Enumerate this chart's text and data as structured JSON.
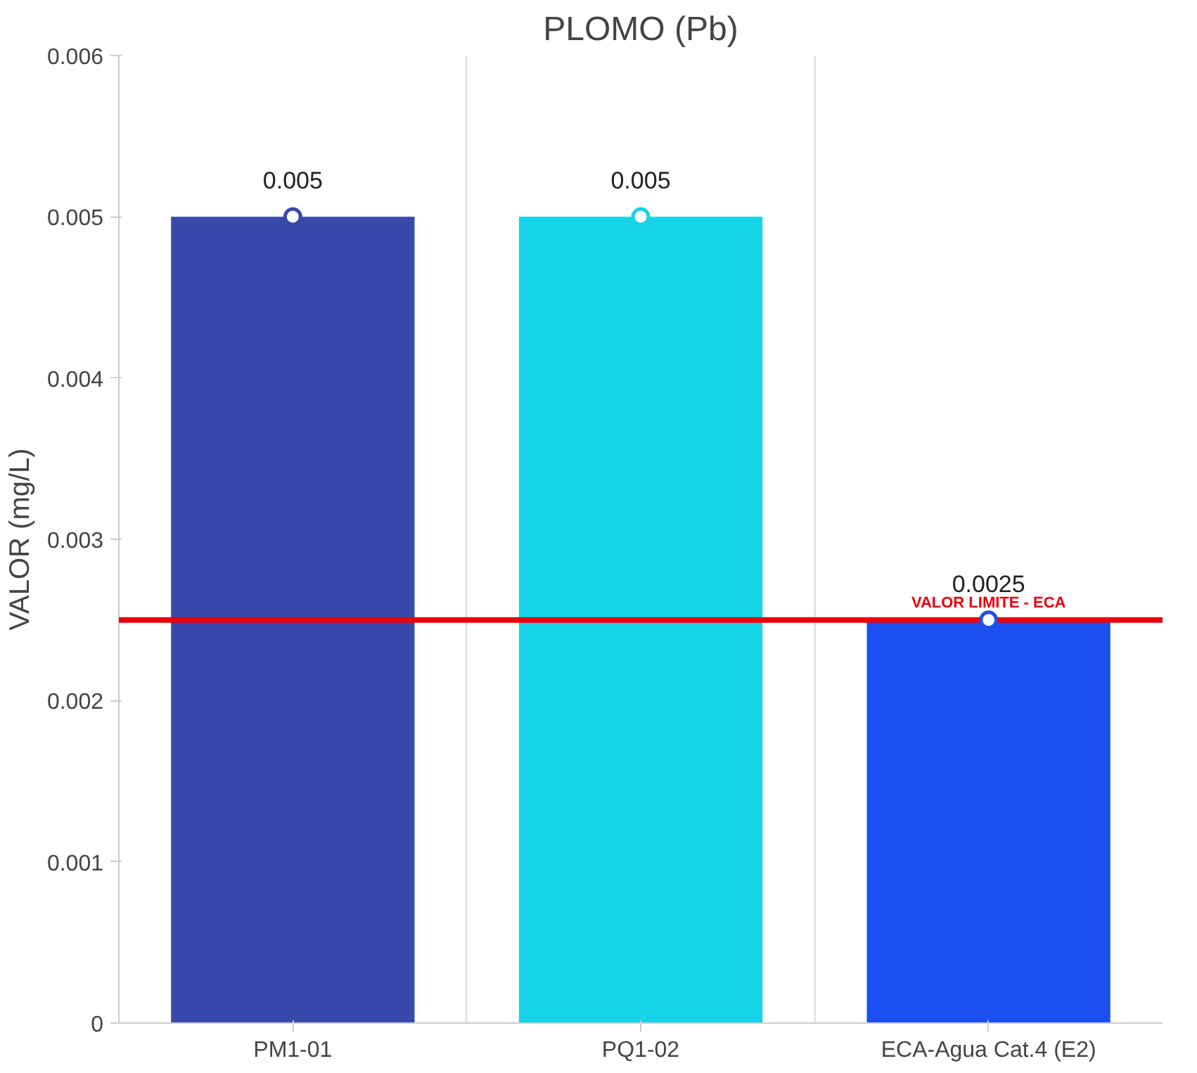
{
  "chart_data": {
    "type": "bar",
    "title": "PLOMO (Pb)",
    "ylabel": "VALOR (mg/L)",
    "categories": [
      "PM1-01",
      "PQ1-02",
      "ECA-Agua Cat.4 (E2)"
    ],
    "values": [
      0.005,
      0.005,
      0.0025
    ],
    "colors": [
      "#3949ab",
      "#16d3e8",
      "#1c4ff0"
    ],
    "series": [
      {
        "type": "scatter",
        "x": [
          "PM1-01",
          "PQ1-02",
          "ECA-Agua Cat.4 (E2)"
        ],
        "values": [
          0.005,
          0.005,
          0.0025
        ],
        "colors": [
          "#3949ab",
          "#16d3e8",
          "#1c4ff0"
        ],
        "marker": "circle",
        "data_labels": true
      }
    ],
    "ylim": [
      0,
      0.006
    ],
    "yticks": [
      {
        "value": 0,
        "label": "0"
      },
      0.001,
      0.002,
      0.003,
      0.004,
      0.005,
      0.006
    ],
    "grid": "x",
    "ref_lines": [
      {
        "axis": "y",
        "value": 0.0025,
        "label": "VALOR LIMITE - ECA",
        "color": "#e8000b"
      }
    ]
  }
}
